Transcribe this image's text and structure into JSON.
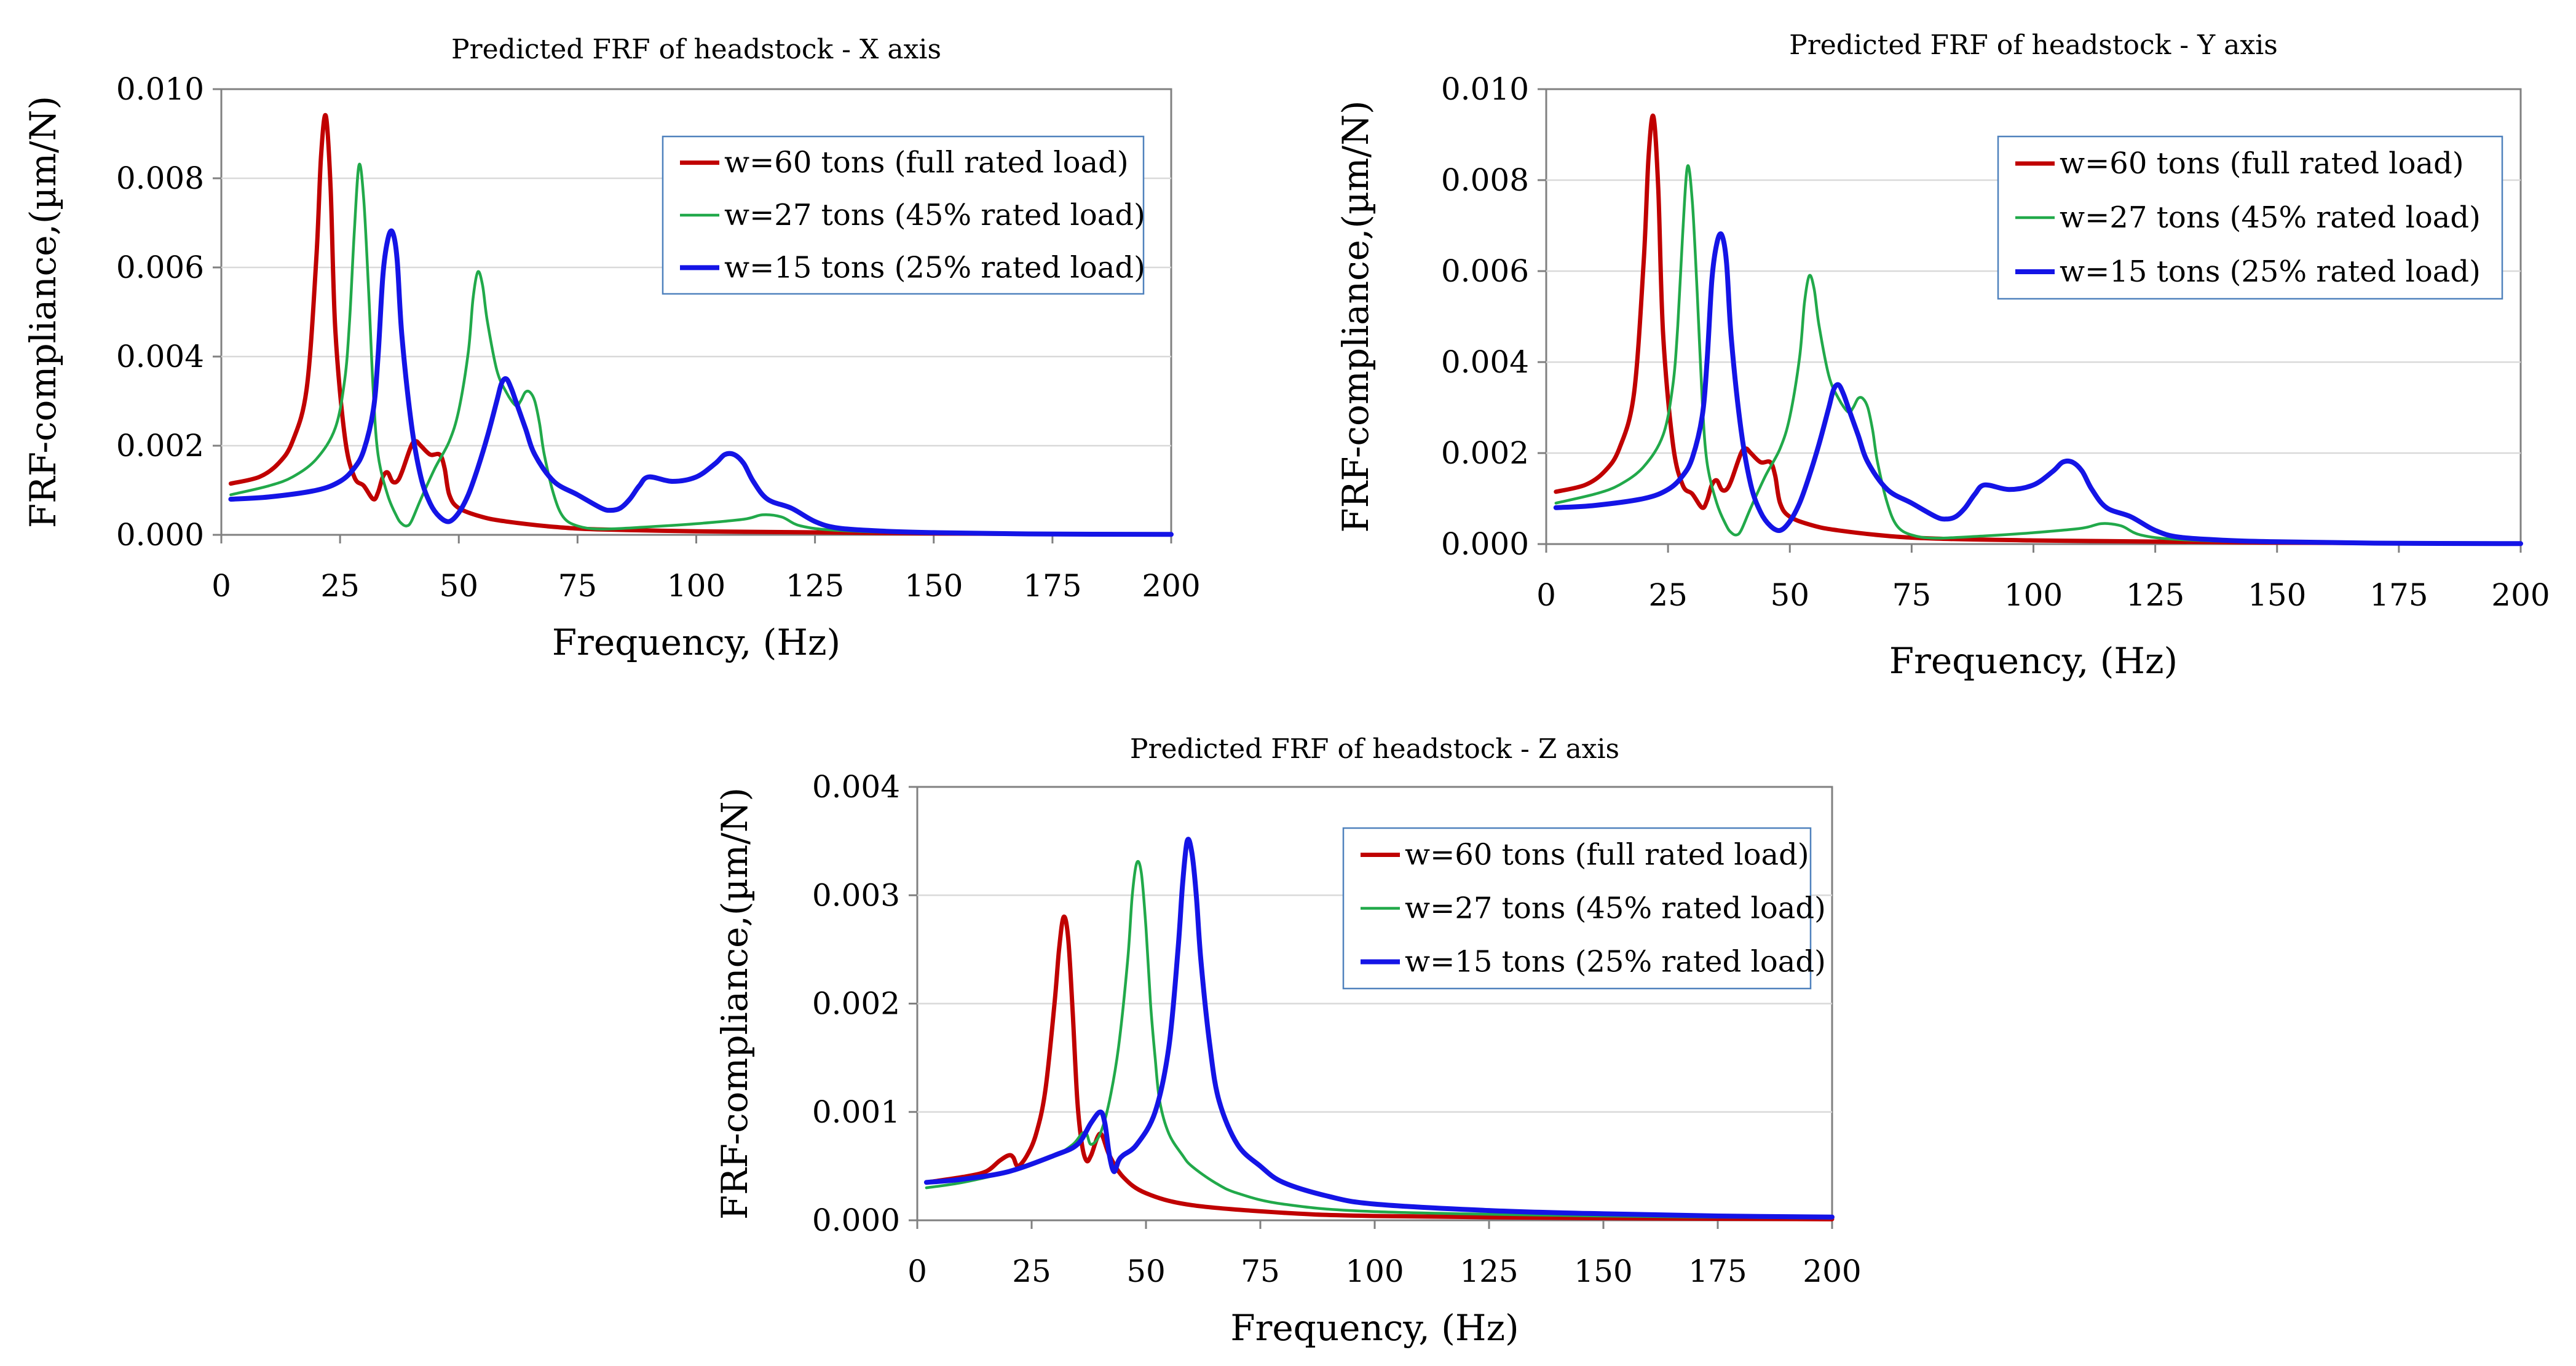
{
  "series_names": [
    "w=60 tons (full rated load)",
    "w=27 tons (45% rated load)",
    "w=15 tons (25% rated load)"
  ],
  "series_colors": [
    "#c00000",
    "#21a94a",
    "#1414e6"
  ],
  "chart_data": [
    {
      "type": "line",
      "title": "Predicted FRF of  headstock - X axis",
      "xlabel": "Frequency, (Hz)",
      "ylabel": "FRF-compliance,(µm/N)",
      "xlim": [
        0,
        200
      ],
      "ylim": [
        0,
        0.01
      ],
      "xticks": [
        "0",
        "25",
        "50",
        "75",
        "100",
        "125",
        "150",
        "175",
        "200"
      ],
      "yticks": [
        "0.000",
        "0.002",
        "0.004",
        "0.006",
        "0.008",
        "0.010"
      ],
      "legend_position": "top-right",
      "series": [
        {
          "name": "w=60 tons (full rated load)",
          "x": [
            2,
            8,
            12,
            15,
            18,
            20,
            21,
            22,
            23,
            24,
            26,
            28,
            30,
            32,
            33,
            34,
            35,
            36,
            37,
            38,
            40,
            41,
            42,
            44,
            46,
            47,
            48,
            50,
            55,
            60,
            70,
            80,
            100,
            120,
            150,
            200
          ],
          "y": [
            0.00115,
            0.0013,
            0.0016,
            0.0021,
            0.0033,
            0.0062,
            0.0085,
            0.0094,
            0.0078,
            0.0046,
            0.0022,
            0.0013,
            0.0011,
            0.0008,
            0.00095,
            0.0013,
            0.0014,
            0.0012,
            0.0012,
            0.0014,
            0.002,
            0.0021,
            0.002,
            0.0018,
            0.0018,
            0.0015,
            0.0009,
            0.0006,
            0.0004,
            0.0003,
            0.00018,
            0.00012,
            8e-05,
            6e-05,
            3e-05,
            1e-05
          ]
        },
        {
          "name": "w=27 tons (45% rated load)",
          "x": [
            2,
            10,
            15,
            20,
            24,
            26,
            27,
            28,
            29,
            30,
            31,
            32,
            33,
            35,
            37,
            38,
            39,
            40,
            42,
            45,
            48,
            50,
            52,
            53,
            54,
            55,
            56,
            58,
            60,
            62,
            63,
            64,
            65,
            66,
            67,
            68,
            70,
            72,
            75,
            80,
            90,
            100,
            110,
            114,
            118,
            122,
            130,
            150,
            200
          ],
          "y": [
            0.0009,
            0.0011,
            0.0013,
            0.0017,
            0.0024,
            0.0035,
            0.0048,
            0.0068,
            0.0083,
            0.0075,
            0.0055,
            0.0032,
            0.0018,
            0.0009,
            0.0004,
            0.00025,
            0.0002,
            0.0003,
            0.0008,
            0.0015,
            0.0021,
            0.0028,
            0.0041,
            0.0053,
            0.0059,
            0.0056,
            0.0048,
            0.0037,
            0.0032,
            0.0029,
            0.003,
            0.0032,
            0.0032,
            0.003,
            0.0025,
            0.0018,
            0.0009,
            0.0004,
            0.0002,
            0.00013,
            0.00018,
            0.00025,
            0.00035,
            0.00045,
            0.0004,
            0.0002,
            0.0001,
            4e-05,
            1e-05
          ]
        },
        {
          "name": "w=15 tons (25% rated load)",
          "x": [
            2,
            10,
            20,
            25,
            28,
            30,
            32,
            33,
            34,
            35,
            36,
            37,
            38,
            40,
            42,
            44,
            46,
            48,
            50,
            52,
            54,
            56,
            58,
            59,
            60,
            61,
            62,
            64,
            66,
            70,
            75,
            80,
            82,
            84,
            86,
            88,
            90,
            95,
            100,
            104,
            106,
            108,
            110,
            112,
            115,
            120,
            125,
            130,
            140,
            150,
            170,
            200
          ],
          "y": [
            0.0008,
            0.00085,
            0.001,
            0.0012,
            0.0015,
            0.0019,
            0.0028,
            0.004,
            0.0058,
            0.0066,
            0.0068,
            0.0062,
            0.0045,
            0.0025,
            0.0013,
            0.0007,
            0.0004,
            0.0003,
            0.0005,
            0.0009,
            0.0015,
            0.0022,
            0.003,
            0.0034,
            0.0035,
            0.0033,
            0.003,
            0.0024,
            0.0018,
            0.0012,
            0.0009,
            0.0006,
            0.00055,
            0.0006,
            0.0008,
            0.0011,
            0.0013,
            0.0012,
            0.0013,
            0.0016,
            0.0018,
            0.0018,
            0.0016,
            0.0012,
            0.0008,
            0.0006,
            0.0003,
            0.00015,
            8e-05,
            5e-05,
            2e-05,
            1e-05
          ]
        }
      ]
    },
    {
      "type": "line",
      "title": "Predicted FRF of  headstock - Y axis",
      "xlabel": "Frequency, (Hz)",
      "ylabel": "FRF-compliance,(µm/N)",
      "xlim": [
        0,
        200
      ],
      "ylim": [
        0,
        0.01
      ],
      "xticks": [
        "0",
        "25",
        "50",
        "75",
        "100",
        "125",
        "150",
        "175",
        "200"
      ],
      "yticks": [
        "0.000",
        "0.002",
        "0.004",
        "0.006",
        "0.008",
        "0.010"
      ],
      "legend_position": "top-right",
      "series": [
        {
          "name": "w=60 tons (full rated load)",
          "x": [
            2,
            8,
            12,
            15,
            18,
            20,
            21,
            22,
            23,
            24,
            26,
            28,
            30,
            32,
            33,
            34,
            35,
            36,
            37,
            38,
            40,
            41,
            42,
            44,
            46,
            47,
            48,
            50,
            55,
            60,
            70,
            80,
            100,
            120,
            150,
            200
          ],
          "y": [
            0.00115,
            0.0013,
            0.0016,
            0.0021,
            0.0033,
            0.0062,
            0.0085,
            0.0094,
            0.0078,
            0.0046,
            0.0022,
            0.0013,
            0.0011,
            0.0008,
            0.00095,
            0.0013,
            0.0014,
            0.0012,
            0.0012,
            0.0014,
            0.002,
            0.0021,
            0.002,
            0.0018,
            0.0018,
            0.0015,
            0.0009,
            0.0006,
            0.0004,
            0.0003,
            0.00018,
            0.00012,
            8e-05,
            6e-05,
            3e-05,
            1e-05
          ]
        },
        {
          "name": "w=27 tons (45% rated load)",
          "x": [
            2,
            10,
            15,
            20,
            24,
            26,
            27,
            28,
            29,
            30,
            31,
            32,
            33,
            35,
            37,
            38,
            39,
            40,
            42,
            45,
            48,
            50,
            52,
            53,
            54,
            55,
            56,
            58,
            60,
            62,
            63,
            64,
            65,
            66,
            67,
            68,
            70,
            72,
            75,
            80,
            90,
            100,
            110,
            114,
            118,
            122,
            130,
            150,
            200
          ],
          "y": [
            0.0009,
            0.0011,
            0.0013,
            0.0017,
            0.0024,
            0.0035,
            0.0048,
            0.0068,
            0.0083,
            0.0075,
            0.0055,
            0.0032,
            0.0018,
            0.0009,
            0.0004,
            0.00025,
            0.0002,
            0.0003,
            0.0008,
            0.0015,
            0.0021,
            0.0028,
            0.0041,
            0.0053,
            0.0059,
            0.0056,
            0.0048,
            0.0037,
            0.0032,
            0.0029,
            0.003,
            0.0032,
            0.0032,
            0.003,
            0.0025,
            0.0018,
            0.0009,
            0.0004,
            0.0002,
            0.00013,
            0.00018,
            0.00025,
            0.00035,
            0.00045,
            0.0004,
            0.0002,
            0.0001,
            4e-05,
            1e-05
          ]
        },
        {
          "name": "w=15 tons (25% rated load)",
          "x": [
            2,
            10,
            20,
            25,
            28,
            30,
            32,
            33,
            34,
            35,
            36,
            37,
            38,
            40,
            42,
            44,
            46,
            48,
            50,
            52,
            54,
            56,
            58,
            59,
            60,
            61,
            62,
            64,
            66,
            70,
            75,
            80,
            82,
            84,
            86,
            88,
            90,
            95,
            100,
            104,
            106,
            108,
            110,
            112,
            115,
            120,
            125,
            130,
            140,
            150,
            170,
            200
          ],
          "y": [
            0.0008,
            0.00085,
            0.001,
            0.0012,
            0.0015,
            0.0019,
            0.0028,
            0.004,
            0.0058,
            0.0066,
            0.0068,
            0.0062,
            0.0045,
            0.0025,
            0.0013,
            0.0007,
            0.0004,
            0.0003,
            0.0005,
            0.0009,
            0.0015,
            0.0022,
            0.003,
            0.0034,
            0.0035,
            0.0033,
            0.003,
            0.0024,
            0.0018,
            0.0012,
            0.0009,
            0.0006,
            0.00055,
            0.0006,
            0.0008,
            0.0011,
            0.0013,
            0.0012,
            0.0013,
            0.0016,
            0.0018,
            0.0018,
            0.0016,
            0.0012,
            0.0008,
            0.0006,
            0.0003,
            0.00015,
            8e-05,
            5e-05,
            2e-05,
            1e-05
          ]
        }
      ]
    },
    {
      "type": "line",
      "title": "Predicted FRF of  headstock - Z axis",
      "xlabel": "Frequency, (Hz)",
      "ylabel": "FRF-compliance,(µm/N)",
      "xlim": [
        0,
        200
      ],
      "ylim": [
        0,
        0.004
      ],
      "xticks": [
        "0",
        "25",
        "50",
        "75",
        "100",
        "125",
        "150",
        "175",
        "200"
      ],
      "yticks": [
        "0.000",
        "0.001",
        "0.002",
        "0.003",
        "0.004"
      ],
      "legend_position": "top-right",
      "series": [
        {
          "name": "w=60 tons (full rated load)",
          "x": [
            2,
            10,
            15,
            18,
            20,
            21,
            22,
            24,
            26,
            28,
            30,
            31,
            32,
            33,
            34,
            35,
            36,
            37,
            38,
            40,
            42,
            45,
            50,
            60,
            80,
            100,
            150,
            200
          ],
          "y": [
            0.00035,
            0.0004,
            0.00045,
            0.00055,
            0.0006,
            0.00058,
            0.0005,
            0.0006,
            0.0008,
            0.0012,
            0.002,
            0.0025,
            0.0028,
            0.0026,
            0.0019,
            0.0011,
            0.0007,
            0.00055,
            0.0006,
            0.0008,
            0.0006,
            0.0004,
            0.00025,
            0.00014,
            7e-05,
            4e-05,
            2e-05,
            1e-05
          ]
        },
        {
          "name": "w=27 tons (45% rated load)",
          "x": [
            2,
            10,
            20,
            30,
            34,
            36,
            37,
            38,
            40,
            42,
            44,
            46,
            47,
            48,
            49,
            50,
            51,
            52,
            53,
            55,
            58,
            60,
            65,
            70,
            80,
            100,
            150,
            200
          ],
          "y": [
            0.0003,
            0.00035,
            0.00045,
            0.0006,
            0.0007,
            0.0008,
            0.0008,
            0.0007,
            0.0008,
            0.0011,
            0.0016,
            0.0024,
            0.003,
            0.0033,
            0.0032,
            0.0027,
            0.002,
            0.0015,
            0.0011,
            0.0008,
            0.0006,
            0.0005,
            0.00035,
            0.00025,
            0.00015,
            8e-05,
            4e-05,
            2e-05
          ]
        },
        {
          "name": "w=15 tons (25% rated load)",
          "x": [
            2,
            10,
            20,
            30,
            35,
            38,
            40,
            41,
            42,
            43,
            44,
            45,
            48,
            52,
            55,
            57,
            58,
            59,
            60,
            61,
            62,
            64,
            66,
            70,
            75,
            80,
            90,
            100,
            125,
            150,
            175,
            200
          ],
          "y": [
            0.00035,
            0.00038,
            0.00045,
            0.0006,
            0.0007,
            0.0009,
            0.001,
            0.0009,
            0.0006,
            0.00045,
            0.00055,
            0.0006,
            0.0007,
            0.001,
            0.0016,
            0.0025,
            0.0031,
            0.0035,
            0.0034,
            0.003,
            0.0024,
            0.0016,
            0.0011,
            0.0007,
            0.0005,
            0.00035,
            0.00022,
            0.00015,
            9e-05,
            6e-05,
            4e-05,
            3e-05
          ]
        }
      ]
    }
  ]
}
